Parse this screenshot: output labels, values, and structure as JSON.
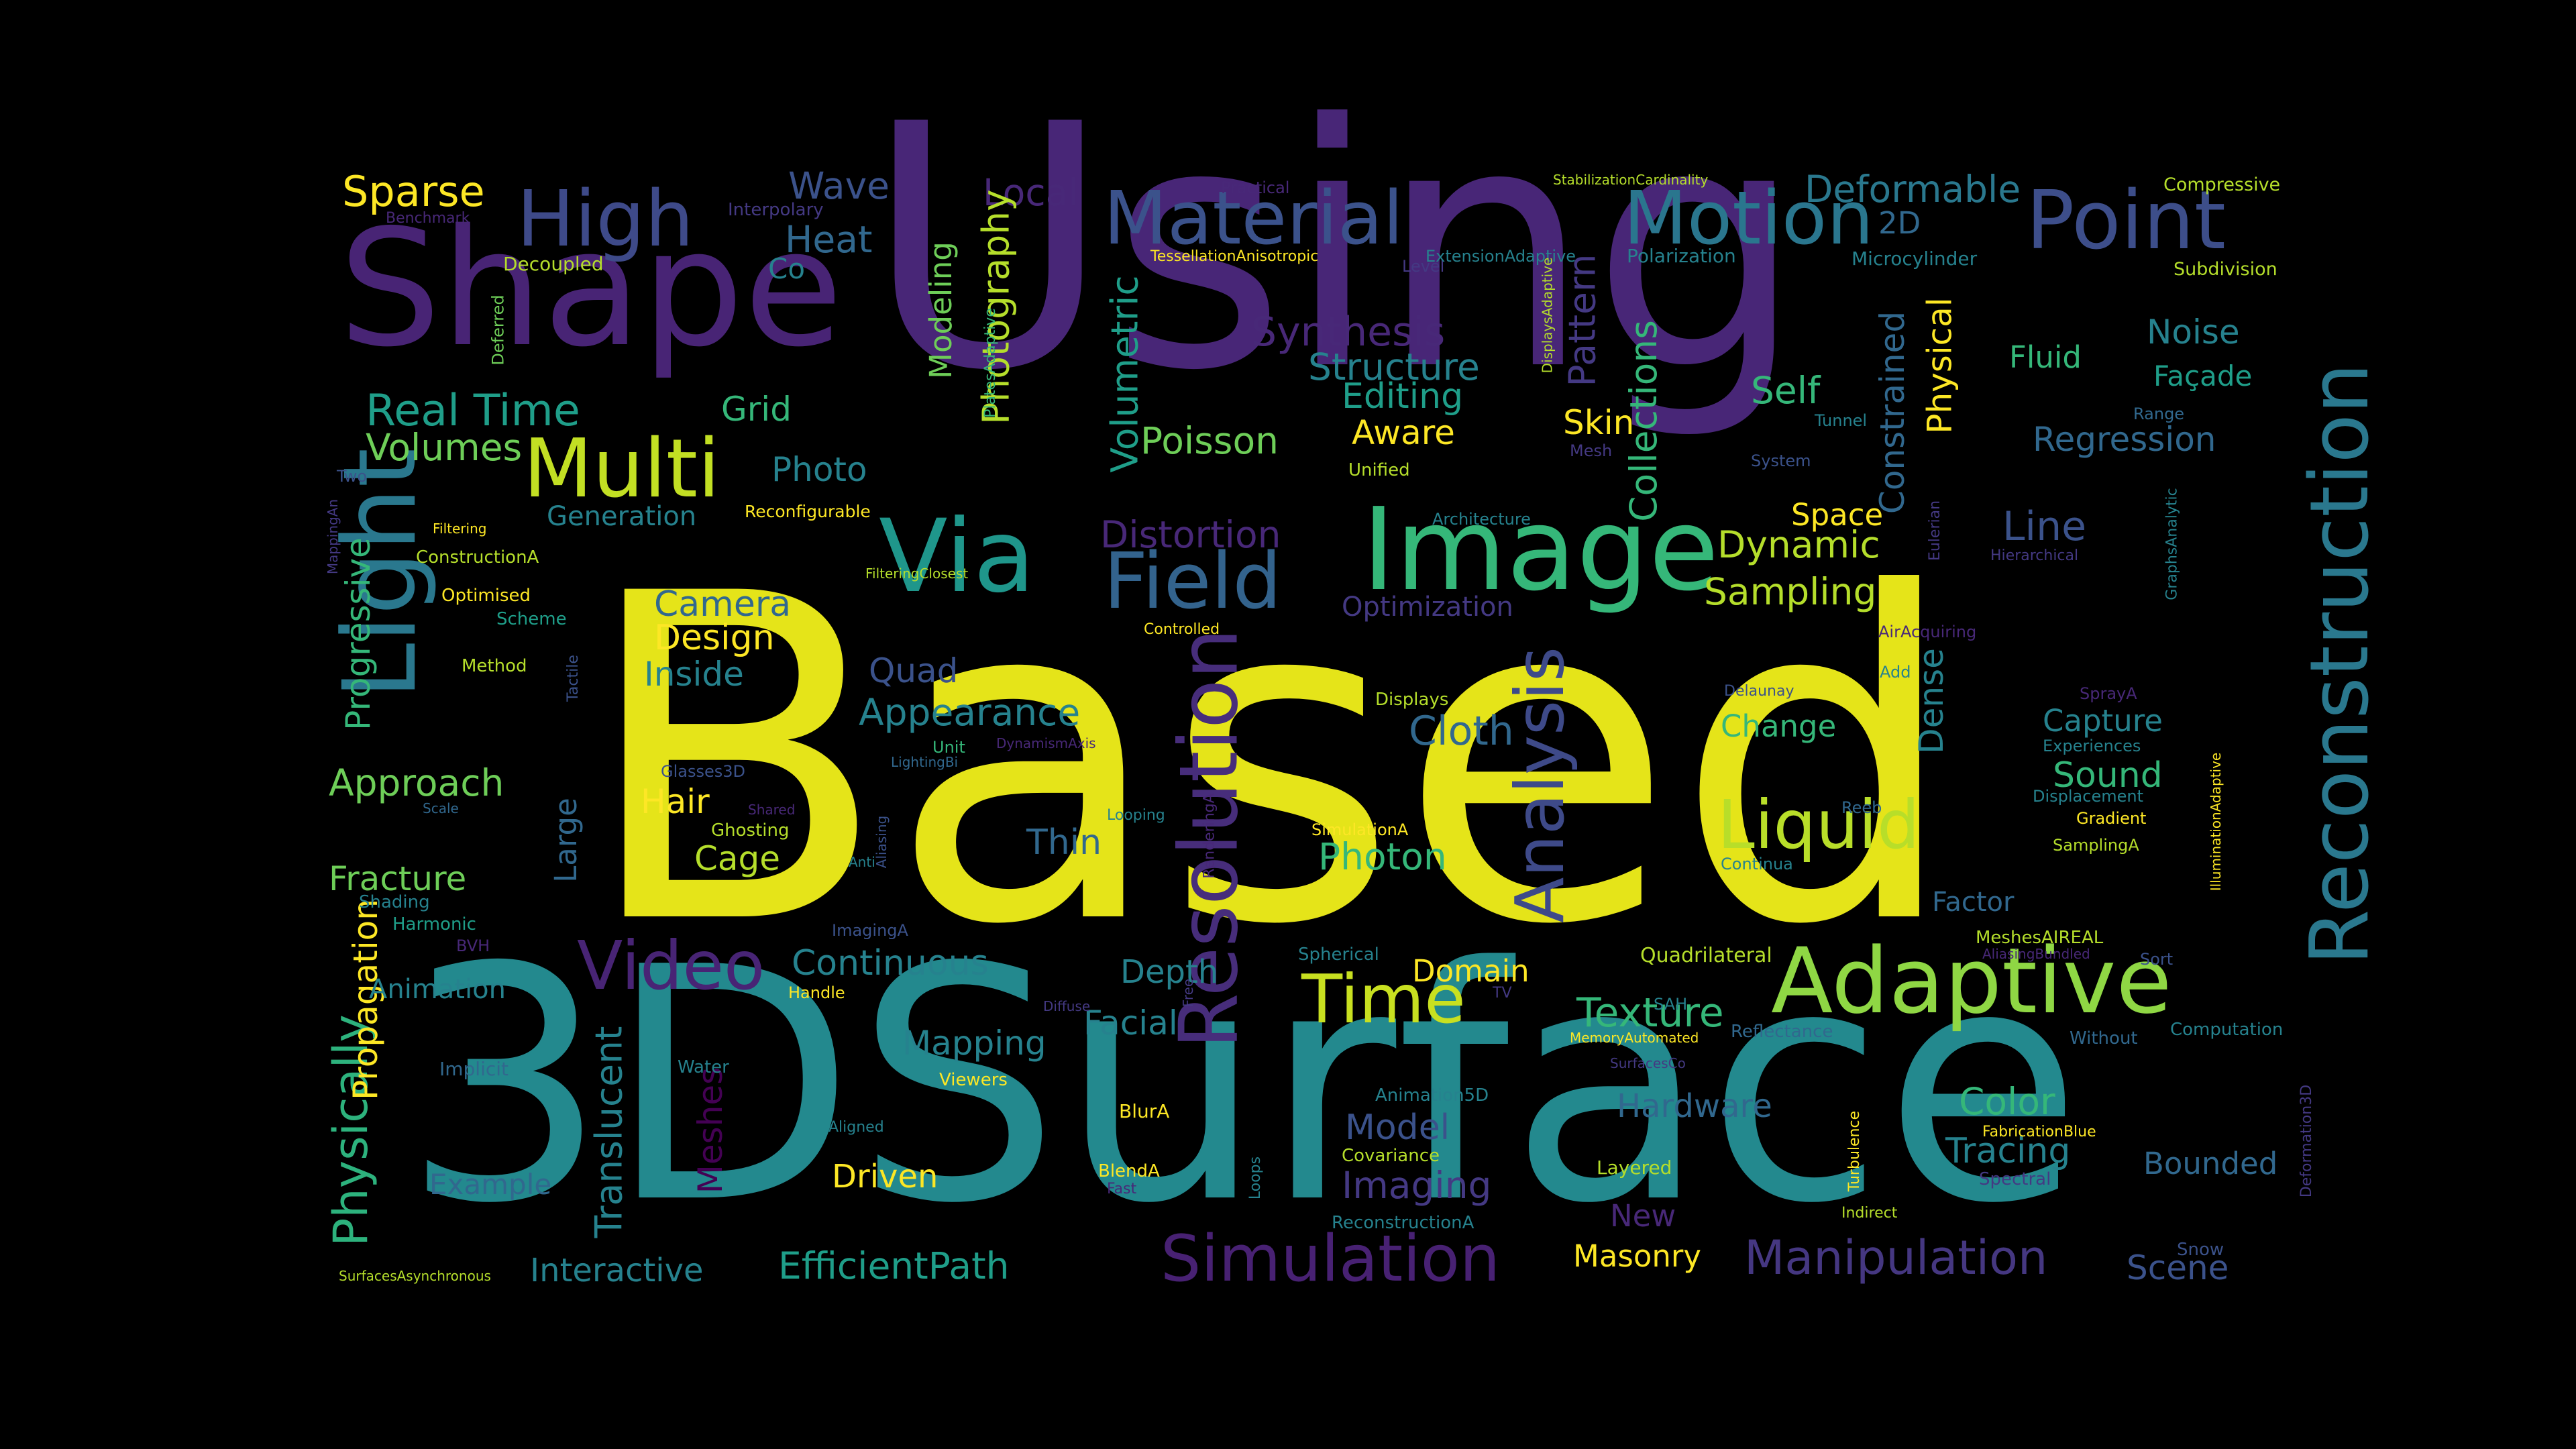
{
  "palette": [
    "#440154",
    "#482878",
    "#3e4989",
    "#31688e",
    "#26828e",
    "#1f9e89",
    "#35b779",
    "#6ece58",
    "#b5de2b",
    "#fde725"
  ],
  "words": [
    {
      "t": "Based",
      "c": "#e5e419"
    },
    {
      "t": "3DSurface",
      "c": "#23898e"
    },
    {
      "t": "Using",
      "c": "#482677"
    },
    {
      "t": "Light",
      "c": "#2a788e"
    },
    {
      "t": "Shape",
      "c": "#482475"
    },
    {
      "t": "Image",
      "c": "#35b779"
    },
    {
      "t": "Adaptive",
      "c": "#8fd744"
    },
    {
      "t": "Reconstruction",
      "c": "#2a788e"
    },
    {
      "t": "Resolution",
      "c": "#472d7b"
    },
    {
      "t": "Multi",
      "c": "#c2df23"
    },
    {
      "t": "Via",
      "c": "#1f968b"
    },
    {
      "t": "High",
      "c": "#3e4a89"
    },
    {
      "t": "Material",
      "c": "#3b528b"
    },
    {
      "t": "Motion",
      "c": "#2a768e"
    },
    {
      "t": "Point",
      "c": "#3d4e8a"
    },
    {
      "t": "Field",
      "c": "#33638d"
    },
    {
      "t": "Analysis",
      "c": "#3e4a89"
    },
    {
      "t": "Time",
      "c": "#c8e020"
    },
    {
      "t": "Liquid",
      "c": "#b8de29"
    },
    {
      "t": "Video",
      "c": "#482475"
    },
    {
      "t": "Simulation",
      "c": "#482173"
    },
    {
      "t": "Texture",
      "c": "#35b779"
    },
    {
      "t": "Manipulation",
      "c": "#453781"
    },
    {
      "t": "Physically",
      "c": "#2db27d"
    },
    {
      "t": "Meshes",
      "c": "#440154"
    },
    {
      "t": "Translucent",
      "c": "#26828e"
    },
    {
      "t": "Sparse",
      "c": "#fde725"
    },
    {
      "t": "Wave",
      "c": "#3b528b"
    },
    {
      "t": "Local",
      "c": "#482878"
    },
    {
      "t": "Heat",
      "c": "#31688e"
    },
    {
      "t": "Deformable",
      "c": "#2a788e"
    },
    {
      "t": "Photography",
      "c": "#b5de2b"
    },
    {
      "t": "Modeling",
      "c": "#6ece58"
    },
    {
      "t": "Volumetric",
      "c": "#1f9e89"
    },
    {
      "t": "Synthesis",
      "c": "#482878"
    },
    {
      "t": "Structure",
      "c": "#26828e"
    },
    {
      "t": "Editing",
      "c": "#1f9e89"
    },
    {
      "t": "Pattern",
      "c": "#443983"
    },
    {
      "t": "Collections",
      "c": "#35b779"
    },
    {
      "t": "Constrained",
      "c": "#31688e"
    },
    {
      "t": "Physical",
      "c": "#fde725"
    },
    {
      "t": "Noise",
      "c": "#26828e"
    },
    {
      "t": "Fluid",
      "c": "#35b779"
    },
    {
      "t": "Façade",
      "c": "#1f9e89"
    },
    {
      "t": "Regression",
      "c": "#31688e"
    },
    {
      "t": "Real Time",
      "c": "#1f9e89"
    },
    {
      "t": "Grid",
      "c": "#35b779"
    },
    {
      "t": "Volumes",
      "c": "#6ece58"
    },
    {
      "t": "Photo",
      "c": "#26828e"
    },
    {
      "t": "Poisson",
      "c": "#6ece58"
    },
    {
      "t": "Aware",
      "c": "#fde725"
    },
    {
      "t": "Skin",
      "c": "#fde725"
    },
    {
      "t": "Self",
      "c": "#35b779"
    },
    {
      "t": "Generation",
      "c": "#26828e"
    },
    {
      "t": "Distortion",
      "c": "#482878"
    },
    {
      "t": "Dynamic",
      "c": "#b5de2b"
    },
    {
      "t": "Space",
      "c": "#fde725"
    },
    {
      "t": "Line",
      "c": "#3b528b"
    },
    {
      "t": "Progressive",
      "c": "#35b779"
    },
    {
      "t": "Camera",
      "c": "#31688e"
    },
    {
      "t": "Design",
      "c": "#fde725"
    },
    {
      "t": "Inside",
      "c": "#26828e"
    },
    {
      "t": "Sampling",
      "c": "#b5de2b"
    },
    {
      "t": "Optimization",
      "c": "#443983"
    },
    {
      "t": "Quad",
      "c": "#3b528b"
    },
    {
      "t": "Appearance",
      "c": "#26828e"
    },
    {
      "t": "Cloth",
      "c": "#31688e"
    },
    {
      "t": "Approach",
      "c": "#6ece58"
    },
    {
      "t": "Hair",
      "c": "#fde725"
    },
    {
      "t": "Cage",
      "c": "#b5de2b"
    },
    {
      "t": "Large",
      "c": "#31688e"
    },
    {
      "t": "Thin",
      "c": "#31688e"
    },
    {
      "t": "Photon",
      "c": "#35b779"
    },
    {
      "t": "Dense",
      "c": "#26828e"
    },
    {
      "t": "Change",
      "c": "#35b779"
    },
    {
      "t": "Capture",
      "c": "#26828e"
    },
    {
      "t": "Sound",
      "c": "#35b779"
    },
    {
      "t": "Fracture",
      "c": "#6ece58"
    },
    {
      "t": "Propagation",
      "c": "#fde725"
    },
    {
      "t": "Continuous",
      "c": "#26828e"
    },
    {
      "t": "Depth",
      "c": "#26828e"
    },
    {
      "t": "Domain",
      "c": "#fde725"
    },
    {
      "t": "Factor",
      "c": "#31688e"
    },
    {
      "t": "Mapping",
      "c": "#26828e"
    },
    {
      "t": "Facial",
      "c": "#26828e"
    },
    {
      "t": "Hardware",
      "c": "#31688e"
    },
    {
      "t": "Color",
      "c": "#35b779"
    },
    {
      "t": "Tracing",
      "c": "#26828e"
    },
    {
      "t": "Model",
      "c": "#3b528b"
    },
    {
      "t": "Imaging",
      "c": "#443983"
    },
    {
      "t": "Bounded",
      "c": "#31688e"
    },
    {
      "t": "Animation",
      "c": "#26828e"
    },
    {
      "t": "Example",
      "c": "#31688e"
    },
    {
      "t": "Driven",
      "c": "#fde725"
    },
    {
      "t": "New",
      "c": "#482878"
    },
    {
      "t": "Masonry",
      "c": "#fde725"
    },
    {
      "t": "Interactive",
      "c": "#26828e"
    },
    {
      "t": "EfficientPath",
      "c": "#1f9e89"
    },
    {
      "t": "Scene",
      "c": "#3b528b"
    },
    {
      "t": "2D",
      "c": "#31688e"
    },
    {
      "t": "Co",
      "c": "#26828e"
    },
    {
      "t": "Quadrilateral",
      "c": "#b5de2b"
    },
    {
      "t": "Compressive",
      "c": "#b5de2b"
    },
    {
      "t": "Subdivision",
      "c": "#b5de2b"
    },
    {
      "t": "Microcylinder",
      "c": "#26828e"
    },
    {
      "t": "Polarization",
      "c": "#26828e"
    },
    {
      "t": "StabilizationCardinality",
      "c": "#b5de2b"
    },
    {
      "t": "Practical",
      "c": "#482878"
    },
    {
      "t": "Benchmark",
      "c": "#482878"
    },
    {
      "t": "Interpolary",
      "c": "#443983"
    },
    {
      "t": "Decoupled",
      "c": "#b5de2b"
    },
    {
      "t": "Deferred",
      "c": "#6ece58"
    },
    {
      "t": "TessellationAnisotropic",
      "c": "#fde725"
    },
    {
      "t": "Level",
      "c": "#443983"
    },
    {
      "t": "ExtensionAdaptive",
      "c": "#26828e"
    },
    {
      "t": "DisplaysAdaptive",
      "c": "#b5de2b"
    },
    {
      "t": "PlatesAdaptive",
      "c": "#35b779"
    },
    {
      "t": "Tunnel",
      "c": "#26828e"
    },
    {
      "t": "Range",
      "c": "#31688e"
    },
    {
      "t": "Mesh",
      "c": "#443983"
    },
    {
      "t": "System",
      "c": "#3b528b"
    },
    {
      "t": "Unified",
      "c": "#b5de2b"
    },
    {
      "t": "Architecture",
      "c": "#26828e"
    },
    {
      "t": "Reconfigurable",
      "c": "#fde725"
    },
    {
      "t": "Filtering",
      "c": "#fde725"
    },
    {
      "t": "Two",
      "c": "#3b528b"
    },
    {
      "t": "MappingAn",
      "c": "#443983"
    },
    {
      "t": "ConstructionA",
      "c": "#b5de2b"
    },
    {
      "t": "Optimised",
      "c": "#fde725"
    },
    {
      "t": "Scheme",
      "c": "#1f9e89"
    },
    {
      "t": "Method",
      "c": "#b5de2b"
    },
    {
      "t": "Tactile",
      "c": "#3b528b"
    },
    {
      "t": "Controlled",
      "c": "#fde725"
    },
    {
      "t": "FilteringClosest",
      "c": "#b5de2b"
    },
    {
      "t": "Eulerian",
      "c": "#443983"
    },
    {
      "t": "Hierarchical",
      "c": "#443983"
    },
    {
      "t": "GraphsAnalytic",
      "c": "#26828e"
    },
    {
      "t": "AirAcquiring",
      "c": "#482878"
    },
    {
      "t": "Add",
      "c": "#26828e"
    },
    {
      "t": "Delaunay",
      "c": "#3b528b"
    },
    {
      "t": "Displays",
      "c": "#b5de2b"
    },
    {
      "t": "SprayA",
      "c": "#482878"
    },
    {
      "t": "Experiences",
      "c": "#26828e"
    },
    {
      "t": "Displacement",
      "c": "#26828e"
    },
    {
      "t": "Gradient",
      "c": "#fde725"
    },
    {
      "t": "SamplingA",
      "c": "#b5de2b"
    },
    {
      "t": "IlluminationAdaptive",
      "c": "#fde725"
    },
    {
      "t": "Reeb",
      "c": "#31688e"
    },
    {
      "t": "Continua",
      "c": "#26828e"
    },
    {
      "t": "Unit",
      "c": "#35b779"
    },
    {
      "t": "DynamismAxis",
      "c": "#482878"
    },
    {
      "t": "LightingBi",
      "c": "#31688e"
    },
    {
      "t": "Glasses3D",
      "c": "#3b528b"
    },
    {
      "t": "Shared",
      "c": "#482878"
    },
    {
      "t": "Ghosting",
      "c": "#b5de2b"
    },
    {
      "t": "Looping",
      "c": "#26828e"
    },
    {
      "t": "SimulationA",
      "c": "#fde725"
    },
    {
      "t": "RenderingA",
      "c": "#482878"
    },
    {
      "t": "Scale",
      "c": "#31688e"
    },
    {
      "t": "Shading",
      "c": "#26828e"
    },
    {
      "t": "Harmonic",
      "c": "#1f9e89"
    },
    {
      "t": "BVH",
      "c": "#482878"
    },
    {
      "t": "Aliasing",
      "c": "#3b528b"
    },
    {
      "t": "Anti",
      "c": "#26828e"
    },
    {
      "t": "ImagingA",
      "c": "#3b528b"
    },
    {
      "t": "Handle",
      "c": "#fde725"
    },
    {
      "t": "Diffuse",
      "c": "#443983"
    },
    {
      "t": "Free",
      "c": "#443983"
    },
    {
      "t": "Spherical",
      "c": "#26828e"
    },
    {
      "t": "MeshesAIREAL",
      "c": "#b5de2b"
    },
    {
      "t": "AliasingBundled",
      "c": "#482878"
    },
    {
      "t": "Sort",
      "c": "#3b528b"
    },
    {
      "t": "SAH",
      "c": "#26828e"
    },
    {
      "t": "MemoryAutomated",
      "c": "#fde725"
    },
    {
      "t": "Reflectance",
      "c": "#31688e"
    },
    {
      "t": "Without",
      "c": "#31688e"
    },
    {
      "t": "Computation",
      "c": "#26828e"
    },
    {
      "t": "TV",
      "c": "#443983"
    },
    {
      "t": "Implicit",
      "c": "#31688e"
    },
    {
      "t": "Water",
      "c": "#26828e"
    },
    {
      "t": "Viewers",
      "c": "#fde725"
    },
    {
      "t": "Animation5D",
      "c": "#26828e"
    },
    {
      "t": "SurfacesCo",
      "c": "#443983"
    },
    {
      "t": "BlurA",
      "c": "#fde725"
    },
    {
      "t": "FabricationBlue",
      "c": "#fde725"
    },
    {
      "t": "Aligned",
      "c": "#26828e"
    },
    {
      "t": "Covariance",
      "c": "#b5de2b"
    },
    {
      "t": "BlendA",
      "c": "#fde725"
    },
    {
      "t": "Fast",
      "c": "#482878"
    },
    {
      "t": "Loops",
      "c": "#26828e"
    },
    {
      "t": "Layered",
      "c": "#b5de2b"
    },
    {
      "t": "Turbulence",
      "c": "#fde725"
    },
    {
      "t": "Spectral",
      "c": "#443983"
    },
    {
      "t": "Indirect",
      "c": "#b5de2b"
    },
    {
      "t": "Deformation3D",
      "c": "#443983"
    },
    {
      "t": "ReconstructionA",
      "c": "#26828e"
    },
    {
      "t": "SurfacesAsynchronous",
      "c": "#b5de2b"
    },
    {
      "t": "Snow",
      "c": "#3b528b"
    }
  ]
}
